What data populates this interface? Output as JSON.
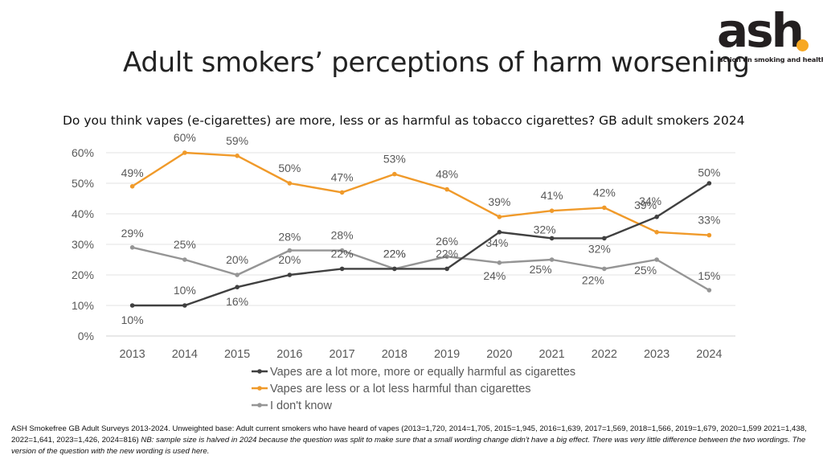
{
  "header": {
    "title": "Adult smokers’ perceptions of harm worsening"
  },
  "logo": {
    "word": "ash",
    "tagline": "action on smoking and health"
  },
  "chart_data": {
    "type": "line",
    "title": "Do you think vapes (e-cigarettes) are more, less or as harmful as tobacco cigarettes? GB adult smokers 2024",
    "categories": [
      "2013",
      "2014",
      "2015",
      "2016",
      "2017",
      "2018",
      "2019",
      "2020",
      "2021",
      "2022",
      "2023",
      "2024"
    ],
    "ylim": [
      0,
      60
    ],
    "yticks": [
      0,
      10,
      20,
      30,
      40,
      50,
      60
    ],
    "ytick_labels": [
      "0%",
      "10%",
      "20%",
      "30%",
      "40%",
      "50%",
      "60%"
    ],
    "legend_position": "bottom",
    "series": [
      {
        "name": "Vapes are a lot more, more or equally harmful as cigarettes",
        "color": "#404040",
        "values": [
          10,
          10,
          16,
          20,
          22,
          22,
          22,
          34,
          32,
          32,
          39,
          50
        ],
        "labels": [
          "10%",
          "10%",
          "16%",
          "20%",
          "22%",
          "22%",
          "22%",
          "34%",
          "32%",
          "32%",
          "",
          ""
        ]
      },
      {
        "name": "Vapes are less or a lot less harmful than cigarettes",
        "color": "#f09a2a",
        "values": [
          49,
          60,
          59,
          50,
          47,
          53,
          48,
          39,
          41,
          42,
          34,
          33
        ],
        "labels": [
          "49%",
          "60%",
          "59%",
          "50%",
          "47%",
          "53%",
          "48%",
          "39%",
          "41%",
          "42%",
          "34%",
          "33%"
        ]
      },
      {
        "name": "I don't know",
        "color": "#959595",
        "values": [
          29,
          25,
          20,
          28,
          28,
          22,
          26,
          24,
          25,
          22,
          25,
          15
        ],
        "labels": [
          "29%",
          "25%",
          "20%",
          "28%",
          "28%",
          "22%",
          "26%",
          "24%",
          "25%",
          "22%",
          "25%",
          "15%"
        ]
      }
    ],
    "extra_labels": [
      "39%",
      "50%"
    ]
  },
  "footnote": {
    "text": "ASH Smokefree GB Adult Surveys 2013-2024. Unweighted base: Adult current smokers who have heard of vapes (2013=1,720, 2014=1,705, 2015=1,945, 2016=1,639, 2017=1,569, 2018=1,566, 2019=1,679, 2020=1,599 2021=1,438, 2022=1,641, 2023=1,426, 2024=816)",
    "note": "NB: sample size is halved in 2024 because the question was split to make sure that a small wording change didn't have a big effect. There was very little difference between the two wordings. The version of the question with the new wording is used here."
  }
}
